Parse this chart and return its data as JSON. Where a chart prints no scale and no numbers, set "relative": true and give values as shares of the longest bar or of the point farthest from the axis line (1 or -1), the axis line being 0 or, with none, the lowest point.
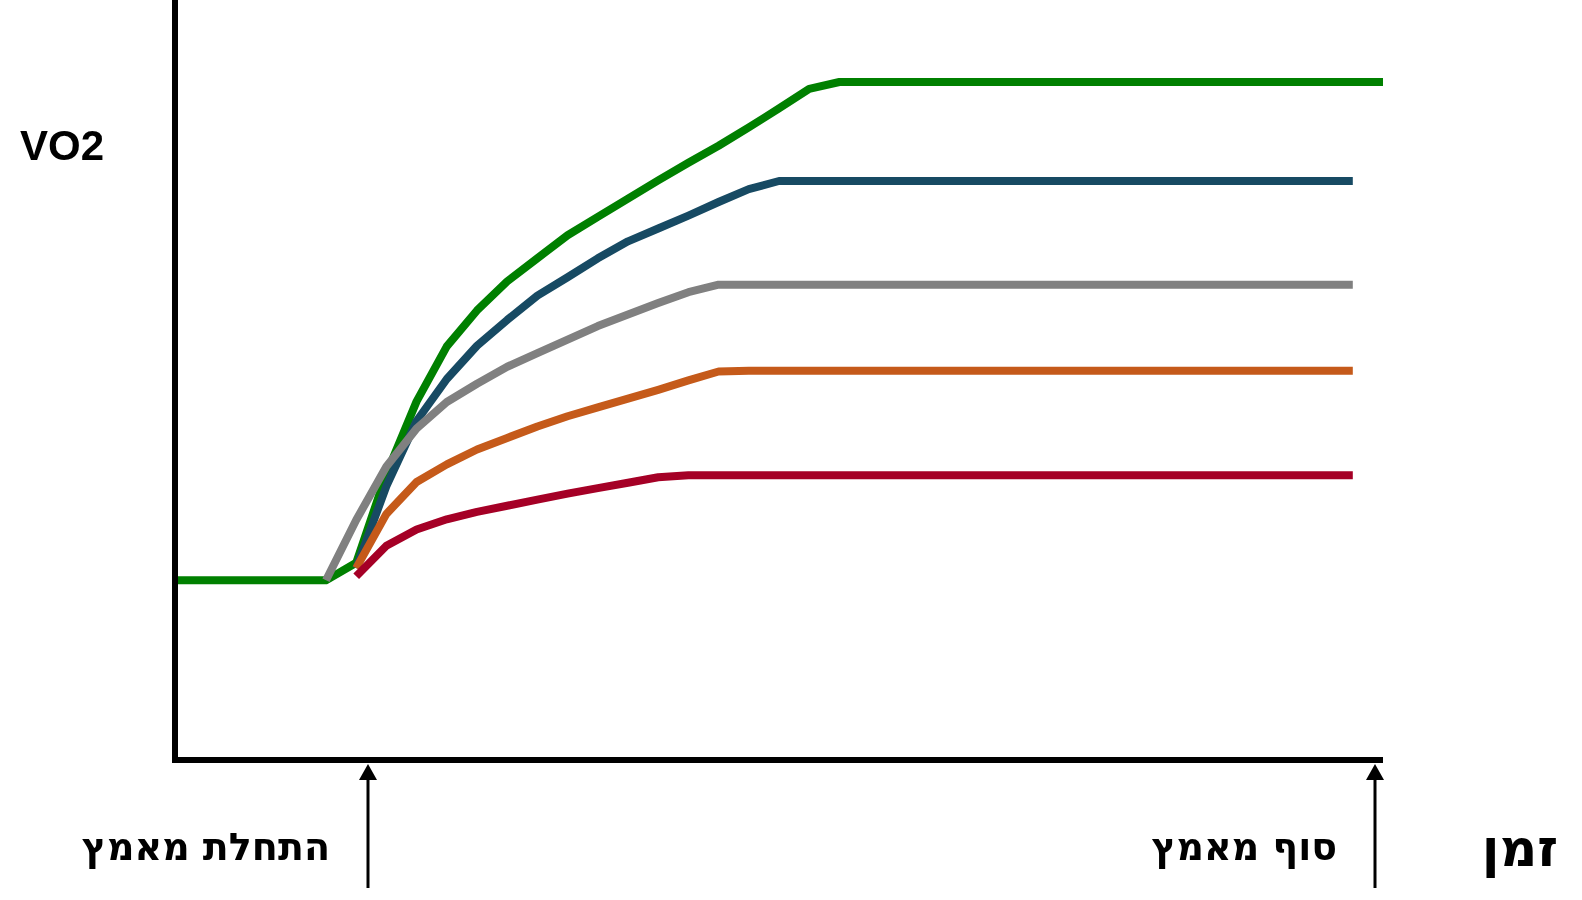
{
  "chart_data": {
    "type": "line",
    "relative": true,
    "ylabel": "VO2",
    "xlabel": "זמן",
    "line_style": "solid",
    "annotations": [
      "התחלת מאמץ",
      "סוף מאמץ"
    ],
    "categories": [
      null,
      null,
      null,
      null,
      null,
      null,
      null,
      null,
      null,
      null,
      null,
      null,
      null,
      null,
      null,
      null,
      null,
      null,
      null,
      null,
      null,
      null,
      null,
      null,
      null,
      null,
      null,
      null,
      null,
      null,
      null,
      null,
      null,
      null,
      null,
      null,
      null,
      null,
      null,
      null,
      null
    ],
    "series": [
      {
        "color": "#008000",
        "values": [
          0.265,
          0.265,
          0.265,
          0.265,
          0.265,
          0.265,
          0.291,
          0.422,
          0.529,
          0.61,
          0.663,
          0.706,
          0.74,
          0.774,
          0.801,
          0.828,
          0.855,
          0.881,
          0.906,
          0.933,
          0.961,
          0.99,
          1,
          1,
          1,
          1,
          1,
          1,
          1,
          1,
          1,
          1,
          1,
          1,
          1,
          1,
          1,
          1,
          1,
          1,
          1
        ]
      },
      {
        "color": "#174a63",
        "values": [
          null,
          null,
          null,
          null,
          null,
          null,
          0.283,
          0.404,
          0.5,
          0.562,
          0.611,
          0.649,
          0.685,
          0.712,
          0.74,
          0.765,
          0.784,
          0.803,
          0.823,
          0.842,
          0.854,
          0.854,
          0.854,
          0.854,
          0.854,
          0.854,
          0.854,
          0.854,
          0.854,
          0.854,
          0.854,
          0.854,
          0.854,
          0.854,
          0.854,
          0.854,
          0.854,
          0.854,
          0.854,
          0.854,
          null
        ]
      },
      {
        "color": "#808080",
        "values": [
          null,
          null,
          null,
          null,
          null,
          0.265,
          0.354,
          0.433,
          0.489,
          0.528,
          0.555,
          0.58,
          0.6,
          0.62,
          0.64,
          0.657,
          0.674,
          0.69,
          0.701,
          0.701,
          0.701,
          0.701,
          0.701,
          0.701,
          0.701,
          0.701,
          0.701,
          0.701,
          0.701,
          0.701,
          0.701,
          0.701,
          0.701,
          0.701,
          0.701,
          0.701,
          0.701,
          0.701,
          0.701,
          0.701,
          null
        ]
      },
      {
        "color": "#c55a1a",
        "values": [
          null,
          null,
          null,
          null,
          null,
          null,
          0.283,
          0.363,
          0.41,
          0.436,
          0.458,
          0.475,
          0.492,
          0.507,
          0.52,
          0.533,
          0.546,
          0.56,
          0.573,
          0.574,
          0.574,
          0.574,
          0.574,
          0.574,
          0.574,
          0.574,
          0.574,
          0.574,
          0.574,
          0.574,
          0.574,
          0.574,
          0.574,
          0.574,
          0.574,
          0.574,
          0.574,
          0.574,
          0.574,
          0.574,
          null
        ]
      },
      {
        "color": "#a50026",
        "values": [
          null,
          null,
          null,
          null,
          null,
          null,
          0.271,
          0.316,
          0.34,
          0.355,
          0.366,
          0.375,
          0.384,
          0.393,
          0.401,
          0.409,
          0.417,
          0.42,
          0.42,
          0.42,
          0.42,
          0.42,
          0.42,
          0.42,
          0.42,
          0.42,
          0.42,
          0.42,
          0.42,
          0.42,
          0.42,
          0.42,
          0.42,
          0.42,
          0.42,
          0.42,
          0.42,
          0.42,
          0.42,
          0.42,
          null
        ]
      }
    ]
  }
}
